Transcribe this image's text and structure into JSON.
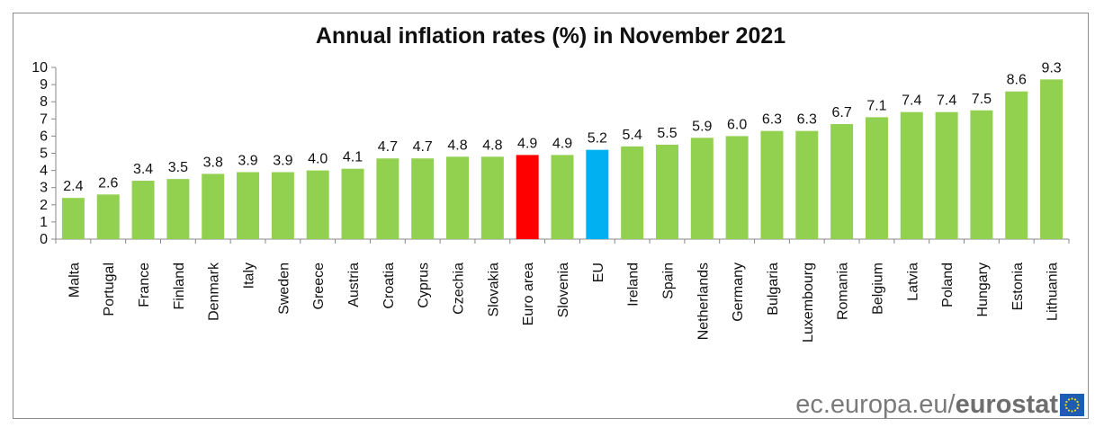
{
  "chart_data": {
    "type": "bar",
    "title": "Annual inflation rates (%)  in November 2021",
    "xlabel": "",
    "ylabel": "",
    "ylim": [
      0,
      10
    ],
    "yticks": [
      0,
      1,
      2,
      3,
      4,
      5,
      6,
      7,
      8,
      9,
      10
    ],
    "categories": [
      "Malta",
      "Portugal",
      "France",
      "Finland",
      "Denmark",
      "Italy",
      "Sweden",
      "Greece",
      "Austria",
      "Croatia",
      "Cyprus",
      "Czechia",
      "Slovakia",
      "Euro area",
      "Slovenia",
      "EU",
      "Ireland",
      "Spain",
      "Netherlands",
      "Germany",
      "Bulgaria",
      "Luxembourg",
      "Romania",
      "Belgium",
      "Latvia",
      "Poland",
      "Hungary",
      "Estonia",
      "Lithuania"
    ],
    "values": [
      2.4,
      2.6,
      3.4,
      3.5,
      3.8,
      3.9,
      3.9,
      4.0,
      4.1,
      4.7,
      4.7,
      4.8,
      4.8,
      4.9,
      4.9,
      5.2,
      5.4,
      5.5,
      5.9,
      6.0,
      6.3,
      6.3,
      6.7,
      7.1,
      7.4,
      7.4,
      7.5,
      8.6,
      9.3
    ],
    "value_labels": [
      "2.4",
      "2.6",
      "3.4",
      "3.5",
      "3.8",
      "3.9",
      "3.9",
      "4.0",
      "4.1",
      "4.7",
      "4.7",
      "4.8",
      "4.8",
      "4.9",
      "4.9",
      "5.2",
      "5.4",
      "5.5",
      "5.9",
      "6.0",
      "6.3",
      "6.3",
      "6.7",
      "7.1",
      "7.4",
      "7.4",
      "7.5",
      "8.6",
      "9.3"
    ],
    "colors": {
      "default": "#92d050",
      "highlight": {
        "Euro area": "#ff0000",
        "EU": "#00b0f0"
      }
    },
    "grid": false
  },
  "source": {
    "site": "ec.europa.eu/",
    "brand": "eurostat",
    "logo": "eu-flag-icon"
  }
}
